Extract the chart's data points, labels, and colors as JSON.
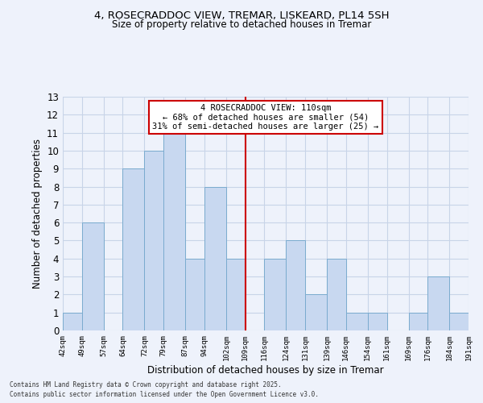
{
  "title": "4, ROSECRADDOC VIEW, TREMAR, LISKEARD, PL14 5SH",
  "subtitle": "Size of property relative to detached houses in Tremar",
  "xlabel": "Distribution of detached houses by size in Tremar",
  "ylabel": "Number of detached properties",
  "bar_color": "#c8d8f0",
  "bar_edge_color": "#7aabcf",
  "grid_color": "#c8d4e8",
  "vline_x": 109,
  "vline_color": "#cc0000",
  "annotation_lines": [
    "4 ROSECRADDOC VIEW: 110sqm",
    "← 68% of detached houses are smaller (54)",
    "31% of semi-detached houses are larger (25) →"
  ],
  "annotation_box_edge": "#cc0000",
  "bins": [
    42,
    49,
    57,
    64,
    72,
    79,
    87,
    94,
    102,
    109,
    116,
    124,
    131,
    139,
    146,
    154,
    161,
    169,
    176,
    184,
    191
  ],
  "counts": [
    1,
    6,
    0,
    9,
    10,
    11,
    4,
    8,
    4,
    0,
    4,
    5,
    2,
    4,
    1,
    1,
    0,
    1,
    3,
    1
  ],
  "tick_labels": [
    "42sqm",
    "49sqm",
    "57sqm",
    "64sqm",
    "72sqm",
    "79sqm",
    "87sqm",
    "94sqm",
    "102sqm",
    "109sqm",
    "116sqm",
    "124sqm",
    "131sqm",
    "139sqm",
    "146sqm",
    "154sqm",
    "161sqm",
    "169sqm",
    "176sqm",
    "184sqm",
    "191sqm"
  ],
  "ylim": [
    0,
    13
  ],
  "yticks": [
    0,
    1,
    2,
    3,
    4,
    5,
    6,
    7,
    8,
    9,
    10,
    11,
    12,
    13
  ],
  "footnote1": "Contains HM Land Registry data © Crown copyright and database right 2025.",
  "footnote2": "Contains public sector information licensed under the Open Government Licence v3.0.",
  "background_color": "#eef2fb"
}
